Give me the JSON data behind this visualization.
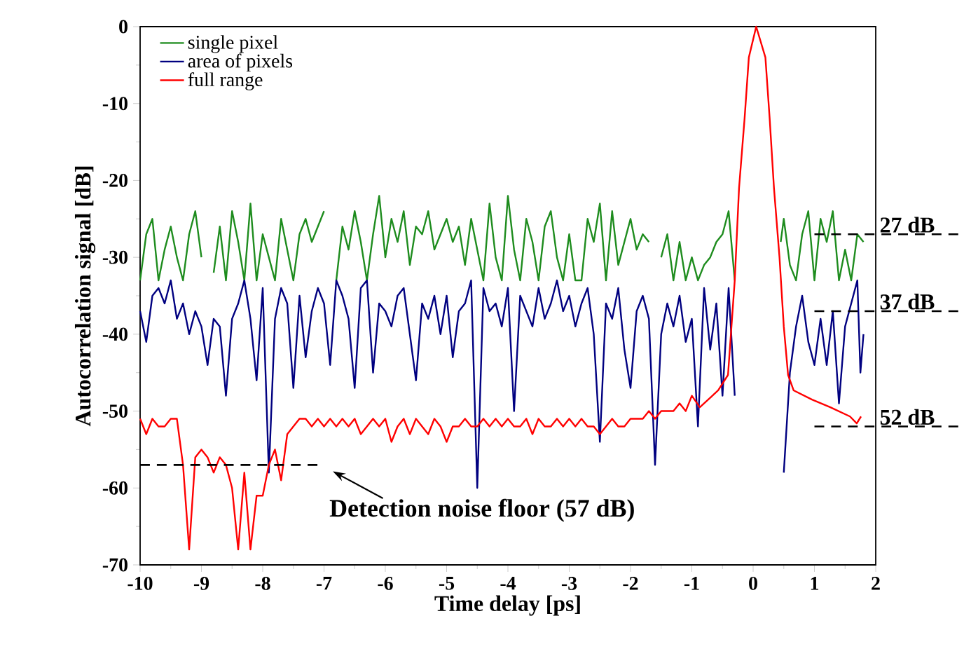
{
  "chart_data": {
    "type": "line",
    "xlabel": "Time delay [ps]",
    "ylabel": "Autocorrelation signal [dB]",
    "xlim": [
      -10,
      2
    ],
    "xticks": [
      -10,
      -9,
      -8,
      -7,
      -6,
      -5,
      -4,
      -3,
      -2,
      -1,
      0,
      1,
      2
    ],
    "ylim": [
      -70,
      0
    ],
    "yticks": [
      -70,
      -60,
      -50,
      -40,
      -30,
      -20,
      -10,
      0
    ],
    "legend": "top left",
    "series": [
      {
        "name": "single pixel",
        "color": "#1e8c1e",
        "x": [
          -10.0,
          -9.9,
          -9.8,
          -9.7,
          -9.6,
          -9.5,
          -9.4,
          -9.3,
          -9.2,
          -9.1,
          -9.0,
          -8.9,
          -8.8,
          -8.7,
          -8.6,
          -8.5,
          -8.4,
          -8.3,
          -8.2,
          -8.1,
          -8.0,
          -7.9,
          -7.8,
          -7.7,
          -7.6,
          -7.5,
          -7.4,
          -7.3,
          -7.2,
          -7.1,
          -7.0,
          -6.9,
          -6.8,
          -6.7,
          -6.6,
          -6.5,
          -6.4,
          -6.3,
          -6.2,
          -6.1,
          -6.0,
          -5.9,
          -5.8,
          -5.7,
          -5.6,
          -5.5,
          -5.4,
          -5.3,
          -5.2,
          -5.1,
          -5.0,
          -4.9,
          -4.8,
          -4.7,
          -4.6,
          -4.5,
          -4.4,
          -4.3,
          -4.2,
          -4.1,
          -4.0,
          -3.9,
          -3.8,
          -3.7,
          -3.6,
          -3.5,
          -3.4,
          -3.3,
          -3.2,
          -3.1,
          -3.0,
          -2.9,
          -2.8,
          -2.7,
          -2.6,
          -2.5,
          -2.4,
          -2.3,
          -2.2,
          -2.1,
          -2.0,
          -1.9,
          -1.8,
          -1.7,
          -1.6,
          -1.5,
          -1.4,
          -1.3,
          -1.2,
          -1.1,
          -1.0,
          -0.9,
          -0.8,
          -0.7,
          -0.6,
          -0.5,
          -0.4,
          -0.3,
          0.1,
          0.45,
          0.5,
          0.6,
          0.7,
          0.8,
          0.9,
          1.0,
          1.1,
          1.2,
          1.3,
          1.4,
          1.5,
          1.6,
          1.7,
          1.8
        ],
        "values": [
          -33,
          -27,
          -25,
          -33,
          -29,
          -26,
          -30,
          -33,
          -27,
          -24,
          -30,
          null,
          -32,
          -26,
          -33,
          -24,
          -28,
          -33,
          -23,
          -33,
          -27,
          -30,
          -33,
          -25,
          -29,
          -33,
          -27,
          -25,
          -28,
          -26,
          -24,
          null,
          -33,
          -26,
          -29,
          -24,
          -28,
          -33,
          -27,
          -22,
          -30,
          -25,
          -28,
          -24,
          -31,
          -26,
          -27,
          -24,
          -29,
          -27,
          -25,
          -28,
          -26,
          -31,
          -25,
          -29,
          -33,
          -23,
          -30,
          -33,
          -22,
          -29,
          -33,
          -25,
          -28,
          -33,
          -26,
          -24,
          -30,
          -33,
          -27,
          -33,
          -33,
          -25,
          -28,
          -23,
          -33,
          -24,
          -31,
          -28,
          -25,
          -29,
          -27,
          -28,
          null,
          -30,
          -27,
          -33,
          -28,
          -33,
          -30,
          -33,
          -31,
          -30,
          -28,
          -27,
          -24,
          -33,
          null,
          -28,
          -25,
          -31,
          -33,
          -27,
          -24,
          -33,
          -25,
          -28,
          -24,
          -33,
          -29,
          -33,
          -27,
          -28
        ]
      },
      {
        "name": "area of pixels",
        "color": "#000080",
        "x": [
          -10.0,
          -9.9,
          -9.8,
          -9.7,
          -9.6,
          -9.5,
          -9.4,
          -9.3,
          -9.2,
          -9.1,
          -9.0,
          -8.9,
          -8.8,
          -8.7,
          -8.6,
          -8.5,
          -8.4,
          -8.3,
          -8.2,
          -8.1,
          -8.0,
          -7.9,
          -7.8,
          -7.7,
          -7.6,
          -7.5,
          -7.4,
          -7.3,
          -7.2,
          -7.1,
          -7.0,
          -6.9,
          -6.8,
          -6.7,
          -6.6,
          -6.5,
          -6.4,
          -6.3,
          -6.2,
          -6.1,
          -6.0,
          -5.9,
          -5.8,
          -5.7,
          -5.6,
          -5.5,
          -5.4,
          -5.3,
          -5.2,
          -5.1,
          -5.0,
          -4.9,
          -4.8,
          -4.7,
          -4.6,
          -4.5,
          -4.4,
          -4.3,
          -4.2,
          -4.1,
          -4.0,
          -3.9,
          -3.8,
          -3.7,
          -3.6,
          -3.5,
          -3.4,
          -3.3,
          -3.2,
          -3.1,
          -3.0,
          -2.9,
          -2.8,
          -2.7,
          -2.6,
          -2.5,
          -2.4,
          -2.3,
          -2.2,
          -2.1,
          -2.0,
          -1.9,
          -1.8,
          -1.7,
          -1.6,
          -1.5,
          -1.4,
          -1.3,
          -1.2,
          -1.1,
          -1.0,
          -0.9,
          -0.8,
          -0.7,
          -0.6,
          -0.5,
          -0.4,
          -0.3,
          0.1,
          0.5,
          0.6,
          0.7,
          0.8,
          0.9,
          1.0,
          1.1,
          1.2,
          1.3,
          1.4,
          1.5,
          1.6,
          1.7,
          1.75,
          1.8
        ],
        "values": [
          -37,
          -41,
          -35,
          -34,
          -36,
          -33,
          -38,
          -36,
          -40,
          -37,
          -39,
          -44,
          -38,
          -39,
          -48,
          -38,
          -36,
          -33,
          -38,
          -46,
          -34,
          -58,
          -38,
          -34,
          -36,
          -47,
          -35,
          -43,
          -37,
          -34,
          -36,
          -44,
          -33,
          -35,
          -38,
          -47,
          -34,
          -33,
          -45,
          -36,
          -37,
          -39,
          -35,
          -34,
          -40,
          -46,
          -36,
          -38,
          -35,
          -40,
          -35,
          -43,
          -37,
          -36,
          -33,
          -60,
          -34,
          -37,
          -36,
          -39,
          -34,
          -50,
          -35,
          -37,
          -39,
          -34,
          -38,
          -36,
          -33,
          -37,
          -35,
          -39,
          -36,
          -34,
          -40,
          -54,
          -36,
          -38,
          -34,
          -42,
          -47,
          -37,
          -35,
          -38,
          -57,
          -40,
          -36,
          -39,
          -35,
          -41,
          -38,
          -52,
          -34,
          -42,
          -36,
          -48,
          -34,
          -48,
          null,
          -58,
          -45,
          -39,
          -35,
          -41,
          -44,
          -38,
          -44,
          -37,
          -49,
          -39,
          -36,
          -33,
          -45,
          -40
        ]
      },
      {
        "name": "full range",
        "color": "#ff0000",
        "x": [
          -10.0,
          -9.9,
          -9.8,
          -9.7,
          -9.6,
          -9.5,
          -9.4,
          -9.3,
          -9.2,
          -9.1,
          -9.0,
          -8.9,
          -8.8,
          -8.7,
          -8.6,
          -8.5,
          -8.4,
          -8.3,
          -8.2,
          -8.1,
          -8.0,
          -7.9,
          -7.8,
          -7.7,
          -7.6,
          -7.5,
          -7.4,
          -7.3,
          -7.2,
          -7.1,
          -7.0,
          -6.9,
          -6.8,
          -6.7,
          -6.6,
          -6.5,
          -6.4,
          -6.3,
          -6.2,
          -6.1,
          -6.0,
          -5.9,
          -5.8,
          -5.7,
          -5.6,
          -5.5,
          -5.4,
          -5.3,
          -5.2,
          -5.1,
          -5.0,
          -4.9,
          -4.8,
          -4.7,
          -4.6,
          -4.5,
          -4.4,
          -4.3,
          -4.2,
          -4.1,
          -4.0,
          -3.9,
          -3.8,
          -3.7,
          -3.6,
          -3.5,
          -3.4,
          -3.3,
          -3.2,
          -3.1,
          -3.0,
          -2.9,
          -2.8,
          -2.7,
          -2.6,
          -2.5,
          -2.4,
          -2.3,
          -2.2,
          -2.1,
          -2.0,
          -1.9,
          -1.8,
          -1.7,
          -1.6,
          -1.5,
          -1.4,
          -1.3,
          -1.2,
          -1.1,
          -1.0,
          -0.87,
          -0.57,
          -0.41,
          -0.3,
          -0.23,
          -0.14,
          -0.07,
          0.05,
          0.2,
          0.27,
          0.34,
          0.43,
          0.5,
          0.57,
          0.66,
          0.96,
          1.26,
          1.58,
          1.69,
          1.76
        ],
        "values": [
          -51,
          -53,
          -51,
          -52,
          -52,
          -51,
          -51,
          -57,
          -68,
          -56,
          -55,
          -56,
          -58,
          -56,
          -57,
          -60,
          -68,
          -58,
          -68,
          -61,
          -61,
          -57,
          -55,
          -59,
          -53,
          -52,
          -51,
          -51,
          -52,
          -51,
          -52,
          -51,
          -52,
          -51,
          -52,
          -51,
          -53,
          -52,
          -51,
          -52,
          -51,
          -54,
          -52,
          -51,
          -53,
          -51,
          -52,
          -53,
          -51,
          -52,
          -54,
          -52,
          -52,
          -51,
          -52,
          -52,
          -51,
          -52,
          -51,
          -52,
          -51,
          -52,
          -52,
          -51,
          -53,
          -51,
          -52,
          -52,
          -51,
          -52,
          -51,
          -52,
          -51,
          -52,
          -52,
          -53,
          -52,
          -51,
          -52,
          -52,
          -51,
          -51,
          -51,
          -50,
          -51,
          -50,
          -50,
          -50,
          -49,
          -50,
          -48,
          -49.5,
          -47.3,
          -45.3,
          -33,
          -21,
          -12,
          -4,
          0,
          -4,
          -12,
          -21,
          -30,
          -39,
          -45.3,
          -47.3,
          -48.5,
          -49.5,
          -50.7,
          -51.6,
          -50.7
        ]
      }
    ],
    "ref_lines": [
      {
        "axis": "y",
        "value": -57,
        "label": "Detection noise floor (57 dB)",
        "color": "#000000",
        "line_style": "dashed"
      },
      {
        "axis": "y",
        "value": -27,
        "label": "27 dB",
        "color": "#000000",
        "line_style": "dashed"
      },
      {
        "axis": "y",
        "value": -37,
        "label": "37 dB",
        "color": "#000000",
        "line_style": "dashed"
      },
      {
        "axis": "y",
        "value": -52,
        "label": "52 dB",
        "color": "#000000",
        "line_style": "dashed"
      }
    ]
  }
}
